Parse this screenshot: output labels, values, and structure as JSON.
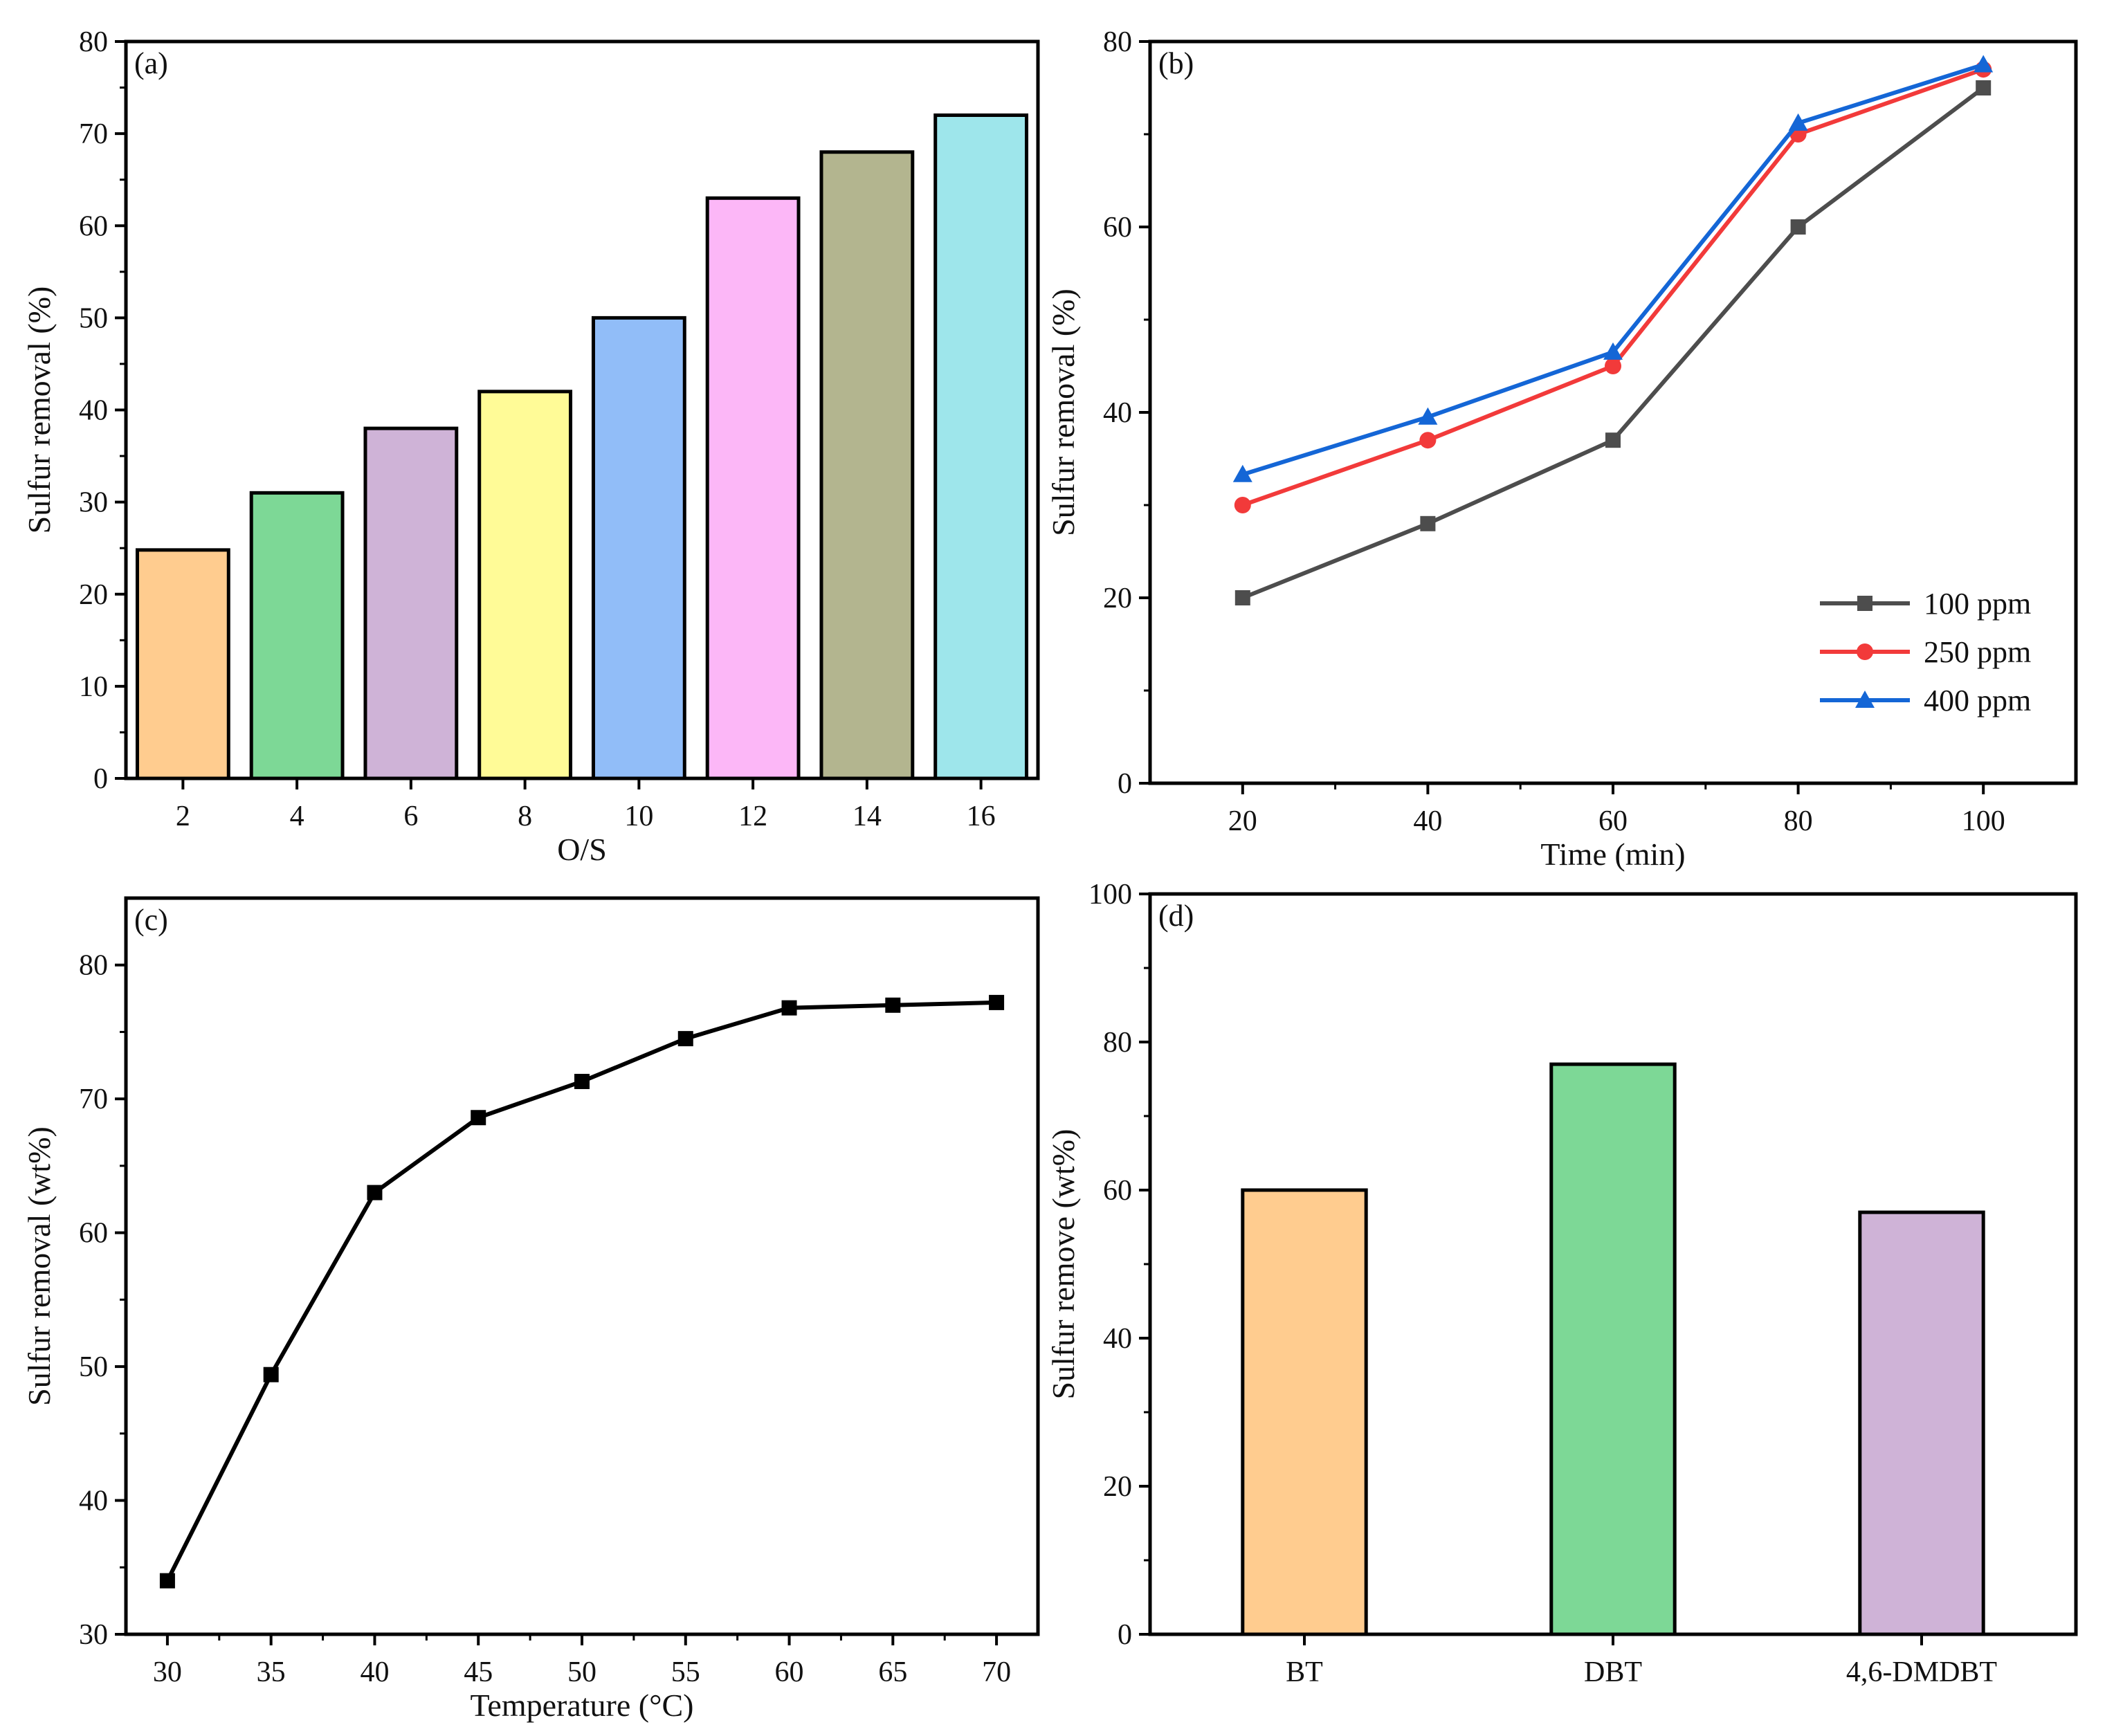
{
  "figure": {
    "background": "#ffffff"
  },
  "chart_data": [
    {
      "panel": "(a)",
      "type": "bar",
      "title": "",
      "xlabel": "O/S",
      "ylabel": "Sulfur removal (%)",
      "categories": [
        "2",
        "4",
        "6",
        "8",
        "10",
        "12",
        "14",
        "16"
      ],
      "values": [
        24.8,
        31,
        38,
        42,
        50,
        63,
        68,
        72
      ],
      "colors": [
        "#FFCC8F",
        "#7DD896",
        "#CFB3D7",
        "#FFFB97",
        "#91BDF8",
        "#FCB7F7",
        "#B3B58F",
        "#9EE6EB"
      ],
      "ylim": [
        0,
        80
      ],
      "yticks": [
        "0",
        "10",
        "20",
        "30",
        "40",
        "50",
        "60",
        "70",
        "80"
      ],
      "grid": false
    },
    {
      "panel": "(b)",
      "type": "line",
      "title": "",
      "xlabel": "Time (min)",
      "ylabel": "Sulfur removal (%)",
      "x": [
        20,
        40,
        60,
        80,
        100
      ],
      "xlim": [
        10,
        110
      ],
      "xticks": [
        "20",
        "40",
        "60",
        "80",
        "100"
      ],
      "ylim": [
        0,
        80
      ],
      "yticks": [
        "0",
        "20",
        "40",
        "60",
        "80"
      ],
      "legend_position": "bottom-right",
      "series": [
        {
          "name": "100 ppm",
          "values": [
            20,
            28,
            37,
            60,
            75
          ],
          "color": "#4D4D4D",
          "marker": "square"
        },
        {
          "name": "250 ppm",
          "values": [
            30,
            37,
            45,
            70,
            77
          ],
          "color": "#F23A3A",
          "marker": "circle"
        },
        {
          "name": "400 ppm",
          "values": [
            33.3,
            39.5,
            46.5,
            71.2,
            77.5
          ],
          "color": "#1466D6",
          "marker": "triangle"
        }
      ],
      "grid": false
    },
    {
      "panel": "(c)",
      "type": "line",
      "title": "",
      "xlabel": "Temperature (°C)",
      "ylabel": "Sulfur removal (wt%)",
      "x": [
        30,
        35,
        40,
        45,
        50,
        55,
        60,
        65,
        70
      ],
      "xlim": [
        28,
        72
      ],
      "xticks": [
        "30",
        "35",
        "40",
        "45",
        "50",
        "55",
        "60",
        "65",
        "70"
      ],
      "ylim": [
        30,
        85
      ],
      "yticks": [
        "30",
        "40",
        "50",
        "60",
        "70",
        "80"
      ],
      "series": [
        {
          "name": "",
          "values": [
            34,
            49.4,
            63,
            68.6,
            71.3,
            74.5,
            76.8,
            77,
            77.2
          ],
          "color": "#000000",
          "marker": "square"
        }
      ],
      "grid": false
    },
    {
      "panel": "(d)",
      "type": "bar",
      "title": "",
      "xlabel": "",
      "ylabel": "Sulfur remove (wt%)",
      "categories": [
        "BT",
        "DBT",
        "4,6-DMDBT"
      ],
      "values": [
        60,
        77,
        57
      ],
      "colors": [
        "#FFCC8F",
        "#7DD896",
        "#CFB3D7"
      ],
      "ylim": [
        0,
        100
      ],
      "yticks": [
        "0",
        "20",
        "40",
        "60",
        "80",
        "100"
      ],
      "grid": false
    }
  ]
}
